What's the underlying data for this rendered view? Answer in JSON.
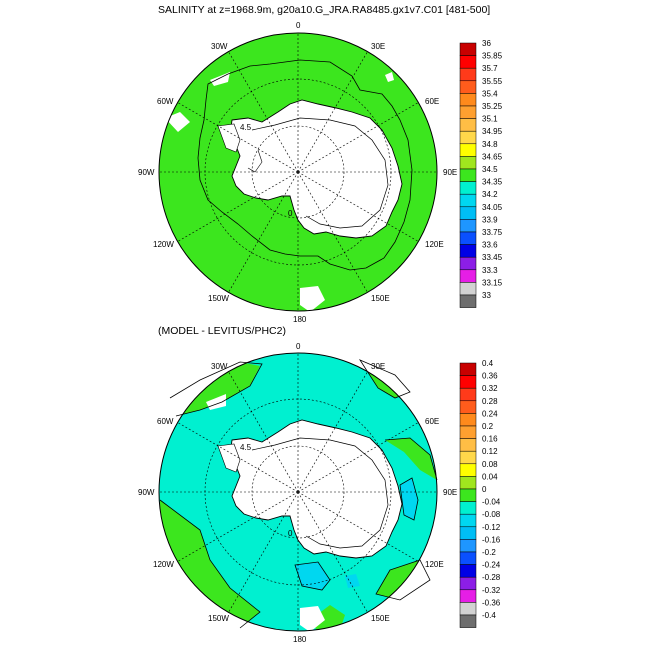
{
  "top_panel": {
    "title": "SALINITY at z=1968.9m, g20a10.G_JRA.RA8485.gx1v7.C01 [481-500]",
    "lon_labels": [
      "0",
      "30E",
      "60E",
      "90E",
      "120E",
      "150E",
      "180",
      "150W",
      "120W",
      "90W",
      "60W",
      "30W"
    ],
    "colorbar": {
      "labels": [
        "36",
        "35.85",
        "35.7",
        "35.55",
        "35.4",
        "35.25",
        "35.1",
        "34.95",
        "34.8",
        "34.65",
        "34.5",
        "34.35",
        "34.2",
        "34.05",
        "33.9",
        "33.75",
        "33.6",
        "33.45",
        "33.3",
        "33.15",
        "33"
      ],
      "colors": [
        "#c80000",
        "#ff0000",
        "#ff3a1a",
        "#ff5c1c",
        "#ff8a1c",
        "#ffa030",
        "#ffbe45",
        "#ffd84a",
        "#ffff00",
        "#a0e61e",
        "#3ce61e",
        "#00f0d0",
        "#00d7f0",
        "#00bef5",
        "#1e96ff",
        "#0a50ff",
        "#0000e6",
        "#8c1ee6",
        "#e61ee6",
        "#d2d2d2",
        "#6e6e6e"
      ]
    },
    "contour_labels": [
      "0",
      "4.5"
    ]
  },
  "bottom_panel": {
    "title": "(MODEL - LEVITUS/PHC2)",
    "lon_labels": [
      "0",
      "30E",
      "60E",
      "90E",
      "120E",
      "150E",
      "180",
      "150W",
      "120W",
      "90W",
      "60W",
      "30W"
    ],
    "colorbar": {
      "labels": [
        "0.4",
        "0.36",
        "0.32",
        "0.28",
        "0.24",
        "0.2",
        "0.16",
        "0.12",
        "0.08",
        "0.04",
        "0",
        "-0.04",
        "-0.08",
        "-0.12",
        "-0.16",
        "-0.2",
        "-0.24",
        "-0.28",
        "-0.32",
        "-0.36",
        "-0.4"
      ],
      "colors": [
        "#c80000",
        "#ff0000",
        "#ff3a1a",
        "#ff5c1c",
        "#ff8a1c",
        "#ffa030",
        "#ffbe45",
        "#ffd84a",
        "#ffff00",
        "#a0e61e",
        "#3ce61e",
        "#00f0d0",
        "#00d7f0",
        "#00bef5",
        "#1e96ff",
        "#0a50ff",
        "#0000e6",
        "#8c1ee6",
        "#e61ee6",
        "#d2d2d2",
        "#6e6e6e"
      ]
    },
    "contour_labels": [
      "0",
      "4.5"
    ]
  }
}
